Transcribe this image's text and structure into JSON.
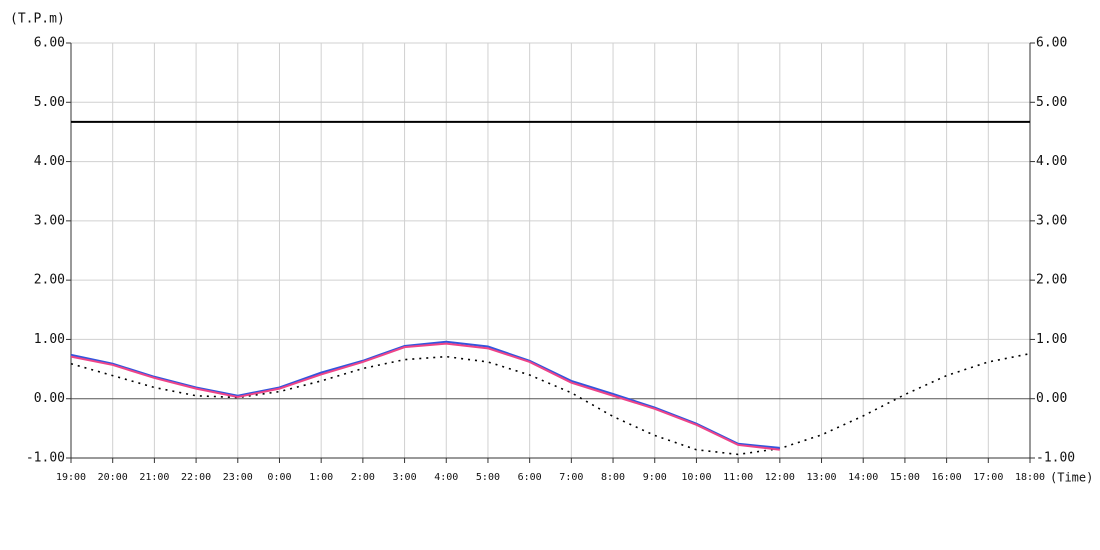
{
  "chart_data": {
    "type": "line",
    "y_label": "(T.P.m)",
    "x_label": "(Time)",
    "categories": [
      "19:00",
      "20:00",
      "21:00",
      "22:00",
      "23:00",
      "0:00",
      "1:00",
      "2:00",
      "3:00",
      "4:00",
      "5:00",
      "6:00",
      "7:00",
      "8:00",
      "9:00",
      "10:00",
      "11:00",
      "12:00",
      "13:00",
      "14:00",
      "15:00",
      "16:00",
      "17:00",
      "18:00"
    ],
    "series": [
      {
        "color": "#000000",
        "dash": "2,5",
        "values": [
          0.59,
          0.39,
          0.19,
          0.05,
          0.02,
          0.12,
          0.3,
          0.51,
          0.66,
          0.71,
          0.62,
          0.4,
          0.1,
          -0.3,
          -0.62,
          -0.86,
          -0.94,
          -0.84,
          -0.61,
          -0.29,
          0.07,
          0.39,
          0.62,
          0.76
        ]
      },
      {
        "color": "#3355dd",
        "values": [
          0.74,
          0.59,
          0.37,
          0.19,
          0.05,
          0.19,
          0.44,
          0.64,
          0.89,
          0.96,
          0.88,
          0.64,
          0.3,
          0.08,
          -0.15,
          -0.42,
          -0.76,
          -0.83,
          null,
          null,
          null,
          null,
          null,
          null
        ]
      },
      {
        "color": "#ee4488",
        "values": [
          0.71,
          0.57,
          0.35,
          0.17,
          0.03,
          0.17,
          0.41,
          0.62,
          0.87,
          0.93,
          0.85,
          0.62,
          0.27,
          0.05,
          -0.17,
          -0.44,
          -0.78,
          -0.86,
          null,
          null,
          null,
          null,
          null,
          null
        ]
      }
    ],
    "reference_lines": [
      {
        "value": 4.67,
        "color": "#000000"
      }
    ],
    "ylim": [
      -1,
      6
    ],
    "yticks": [
      {
        "value": -1,
        "label": "-1.00"
      },
      {
        "value": 0,
        "label": "0.00"
      },
      {
        "value": 1,
        "label": "1.00"
      },
      {
        "value": 2,
        "label": "2.00"
      },
      {
        "value": 3,
        "label": "3.00"
      },
      {
        "value": 4,
        "label": "4.00"
      },
      {
        "value": 5,
        "label": "5.00"
      },
      {
        "value": 6,
        "label": "6.00"
      }
    ],
    "y2lim": [
      -1,
      6
    ],
    "y2ticks": [
      {
        "value": -1,
        "label": "-1.00"
      },
      {
        "value": 0,
        "label": "0.00"
      },
      {
        "value": 1,
        "label": "1.00"
      },
      {
        "value": 2,
        "label": "2.00"
      },
      {
        "value": 3,
        "label": "3.00"
      },
      {
        "value": 4,
        "label": "4.00"
      },
      {
        "value": 5,
        "label": "5.00"
      },
      {
        "value": 6,
        "label": "6.00"
      }
    ],
    "grid": true
  }
}
